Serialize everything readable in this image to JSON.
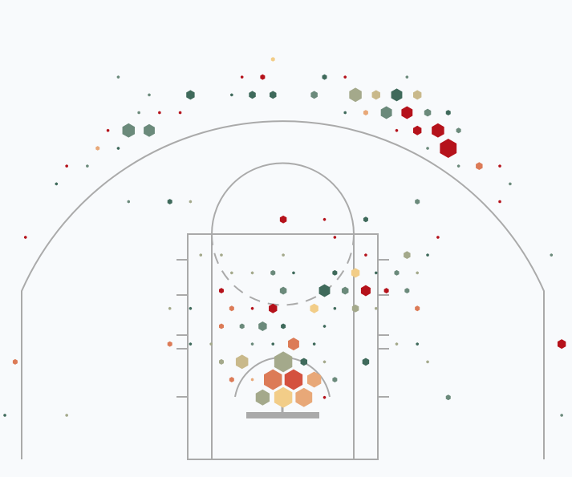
{
  "chart_data": {
    "type": "hexbin",
    "xlim": [
      -0.47,
      55.0
    ],
    "ylim": [
      -3.33,
      23.47
    ],
    "series": [
      {
        "color": "#f2cd88",
        "x": [
          26,
          34,
          30,
          27
        ],
        "y": [
          0,
          12,
          14,
          19
        ],
        "sizes": [
          2,
          9,
          9,
          42
        ]
      },
      {
        "color": "#e8a878",
        "x": [
          35,
          9,
          24,
          30,
          29
        ],
        "y": [
          3,
          5,
          18,
          18,
          19
        ],
        "sizes": [
          3,
          2,
          1,
          25,
          36
        ]
      },
      {
        "color": "#dc7b57",
        "x": [
          46,
          22,
          40,
          21,
          1,
          16,
          28,
          22,
          26
        ],
        "y": [
          6,
          14,
          14,
          15,
          17,
          16,
          16,
          18,
          18
        ],
        "sizes": [
          6,
          3,
          3,
          3,
          3,
          3,
          16,
          3,
          42
        ]
      },
      {
        "color": "#d4513f",
        "x": [
          28
        ],
        "y": [
          18
        ],
        "sizes": [
          42
        ]
      },
      {
        "color": "#b5121b",
        "x": [
          23,
          25,
          33,
          15,
          17,
          39,
          10,
          38,
          40,
          42,
          43,
          6,
          48,
          48,
          27,
          31,
          2,
          32,
          42,
          35,
          21,
          35,
          37,
          24,
          26,
          54,
          31
        ],
        "y": [
          1,
          1,
          1,
          3,
          3,
          3,
          4,
          4,
          4,
          4,
          5,
          6,
          6,
          8,
          9,
          9,
          10,
          10,
          10,
          11,
          13,
          13,
          13,
          14,
          14,
          16,
          19
        ],
        "sizes": [
          1,
          3,
          1,
          1,
          1,
          16,
          1,
          1,
          9,
          20,
          36,
          1,
          1,
          1,
          6,
          1,
          1,
          1,
          1,
          1,
          3,
          12,
          3,
          1,
          9,
          9,
          1
        ]
      },
      {
        "color": "#3f6a5b",
        "x": [
          31,
          18,
          22,
          24,
          26,
          38,
          33,
          43,
          11,
          5,
          16,
          35,
          41,
          28,
          32,
          36,
          31,
          18,
          32,
          27,
          31,
          18,
          26,
          30,
          40,
          29,
          35,
          0
        ],
        "y": [
          1,
          2,
          2,
          2,
          2,
          2,
          3,
          3,
          5,
          7,
          8,
          9,
          11,
          12,
          12,
          12,
          13,
          14,
          14,
          15,
          15,
          16,
          16,
          16,
          16,
          17,
          17,
          20
        ],
        "sizes": [
          3,
          9,
          1,
          6,
          6,
          16,
          1,
          3,
          1,
          1,
          3,
          3,
          1,
          1,
          3,
          1,
          16,
          1,
          1,
          3,
          1,
          1,
          1,
          1,
          1,
          6,
          6,
          1
        ]
      },
      {
        "color": "#6b8a7b",
        "x": [
          11,
          39,
          14,
          30,
          13,
          37,
          41,
          12,
          14,
          44,
          41,
          8,
          44,
          49,
          12,
          40,
          53,
          26,
          38,
          27,
          33,
          39,
          23,
          25,
          24,
          32,
          43,
          54
        ],
        "y": [
          1,
          1,
          2,
          2,
          3,
          3,
          3,
          4,
          4,
          4,
          5,
          6,
          6,
          7,
          8,
          8,
          11,
          12,
          12,
          13,
          13,
          13,
          15,
          15,
          16,
          18,
          19,
          20
        ],
        "sizes": [
          1,
          1,
          1,
          6,
          1,
          16,
          6,
          20,
          16,
          3,
          1,
          1,
          1,
          1,
          1,
          3,
          1,
          3,
          3,
          6,
          6,
          3,
          3,
          9,
          1,
          3,
          3,
          1
        ]
      },
      {
        "color": "#a4a98b",
        "x": [
          34,
          18,
          19,
          21,
          27,
          39,
          22,
          24,
          40,
          16,
          34,
          36,
          20,
          38,
          21,
          27,
          31,
          41,
          25,
          6
        ],
        "y": [
          2,
          8,
          11,
          11,
          11,
          11,
          12,
          12,
          12,
          14,
          14,
          14,
          16,
          16,
          17,
          17,
          17,
          17,
          19,
          20
        ],
        "sizes": [
          20,
          1,
          1,
          1,
          1,
          6,
          1,
          1,
          1,
          1,
          6,
          1,
          1,
          1,
          3,
          42,
          1,
          1,
          25,
          1
        ]
      },
      {
        "color": "#c9b98b",
        "x": [
          36,
          40,
          23
        ],
        "y": [
          2,
          2,
          17
        ],
        "sizes": [
          9,
          9,
          20
        ]
      }
    ]
  }
}
